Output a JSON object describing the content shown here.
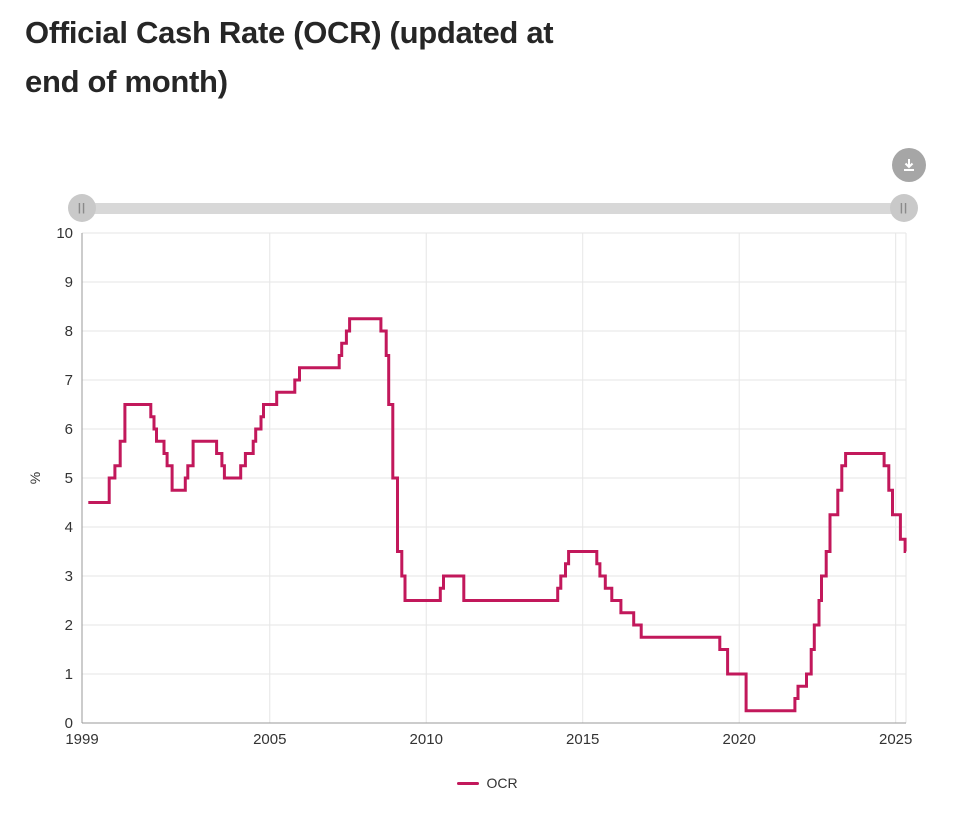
{
  "header": {
    "title_line1": "Official Cash Rate (OCR) (updated at",
    "title_line2": "end of month)"
  },
  "controls": {
    "download_icon": "download-arrow",
    "slider_grip": "||"
  },
  "colors": {
    "line": "#c2185b",
    "grid": "#e6e6e6",
    "axis": "#999999",
    "tick_text": "#333333",
    "title_text": "#262626",
    "slider_track": "#d8d8d8",
    "slider_handle": "#c9c9c9",
    "download_bg": "#a6a6a6"
  },
  "chart_data": {
    "type": "line",
    "step": true,
    "title": "Official Cash Rate (OCR) (updated at end of month)",
    "xlabel": "",
    "ylabel": "%",
    "xlim": [
      1999,
      2025.33
    ],
    "ylim": [
      0,
      10
    ],
    "xticks": [
      1999,
      2005,
      2010,
      2015,
      2020,
      2025
    ],
    "yticks": [
      0,
      1,
      2,
      3,
      4,
      5,
      6,
      7,
      8,
      9,
      10
    ],
    "grid": true,
    "legend_position": "bottom",
    "series": [
      {
        "name": "OCR",
        "color": "#c2185b",
        "points": [
          [
            1999.2,
            4.5
          ],
          [
            1999.87,
            5.0
          ],
          [
            2000.05,
            5.25
          ],
          [
            2000.22,
            5.75
          ],
          [
            2000.37,
            6.5
          ],
          [
            2001.2,
            6.25
          ],
          [
            2001.3,
            6.0
          ],
          [
            2001.38,
            5.75
          ],
          [
            2001.62,
            5.5
          ],
          [
            2001.72,
            5.25
          ],
          [
            2001.88,
            4.75
          ],
          [
            2002.3,
            5.0
          ],
          [
            2002.38,
            5.25
          ],
          [
            2002.55,
            5.75
          ],
          [
            2003.3,
            5.5
          ],
          [
            2003.47,
            5.25
          ],
          [
            2003.55,
            5.0
          ],
          [
            2004.07,
            5.25
          ],
          [
            2004.22,
            5.5
          ],
          [
            2004.47,
            5.75
          ],
          [
            2004.55,
            6.0
          ],
          [
            2004.72,
            6.25
          ],
          [
            2004.8,
            6.5
          ],
          [
            2005.22,
            6.75
          ],
          [
            2005.8,
            7.0
          ],
          [
            2005.95,
            7.25
          ],
          [
            2007.22,
            7.5
          ],
          [
            2007.3,
            7.75
          ],
          [
            2007.45,
            8.0
          ],
          [
            2007.55,
            8.25
          ],
          [
            2008.55,
            8.0
          ],
          [
            2008.72,
            7.5
          ],
          [
            2008.8,
            6.5
          ],
          [
            2008.93,
            5.0
          ],
          [
            2009.08,
            3.5
          ],
          [
            2009.22,
            3.0
          ],
          [
            2009.32,
            2.5
          ],
          [
            2010.45,
            2.75
          ],
          [
            2010.55,
            3.0
          ],
          [
            2011.2,
            2.5
          ],
          [
            2014.2,
            2.75
          ],
          [
            2014.3,
            3.0
          ],
          [
            2014.45,
            3.25
          ],
          [
            2014.55,
            3.5
          ],
          [
            2015.45,
            3.25
          ],
          [
            2015.55,
            3.0
          ],
          [
            2015.72,
            2.75
          ],
          [
            2015.93,
            2.5
          ],
          [
            2016.22,
            2.25
          ],
          [
            2016.63,
            2.0
          ],
          [
            2016.87,
            1.75
          ],
          [
            2019.38,
            1.5
          ],
          [
            2019.63,
            1.0
          ],
          [
            2020.22,
            0.25
          ],
          [
            2021.78,
            0.5
          ],
          [
            2021.88,
            0.75
          ],
          [
            2022.15,
            1.0
          ],
          [
            2022.3,
            1.5
          ],
          [
            2022.4,
            2.0
          ],
          [
            2022.55,
            2.5
          ],
          [
            2022.63,
            3.0
          ],
          [
            2022.78,
            3.5
          ],
          [
            2022.9,
            4.25
          ],
          [
            2023.15,
            4.75
          ],
          [
            2023.28,
            5.25
          ],
          [
            2023.4,
            5.5
          ],
          [
            2024.63,
            5.25
          ],
          [
            2024.78,
            4.75
          ],
          [
            2024.9,
            4.25
          ],
          [
            2025.15,
            3.75
          ],
          [
            2025.3,
            3.5
          ],
          [
            2025.33,
            3.5
          ]
        ]
      }
    ]
  }
}
